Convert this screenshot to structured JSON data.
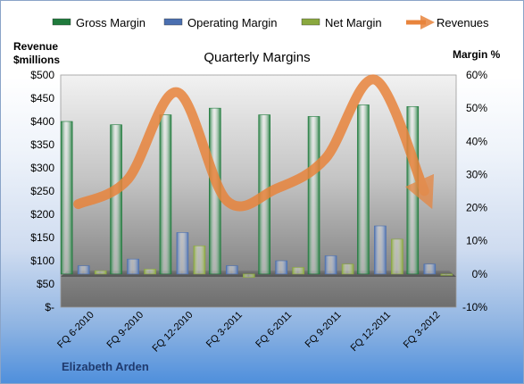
{
  "footer_text": "Elizabeth Arden",
  "chart_data": {
    "type": "bar",
    "title": "Quarterly Margins",
    "left_axis_title_line1": "Revenue",
    "left_axis_title_line2": "$millions",
    "right_axis_title": "Margin %",
    "categories": [
      "FQ 6-2010",
      "FQ 9-2010",
      "FQ 12-2010",
      "FQ 3-2011",
      "FQ 6-2011",
      "FQ 9-2011",
      "FQ 12-2011",
      "FQ 3-2012"
    ],
    "series": [
      {
        "name": "Gross Margin",
        "axis": "right",
        "color": "#1f7a3c",
        "values": [
          46,
          45,
          48,
          50,
          48,
          47.5,
          51,
          50.5
        ]
      },
      {
        "name": "Operating Margin",
        "axis": "right",
        "color": "#4a6fb0",
        "values": [
          2.5,
          4.5,
          12.5,
          2.5,
          4,
          5.5,
          14.5,
          3
        ]
      },
      {
        "name": "Net Margin",
        "axis": "right",
        "color": "#8aa83e",
        "values": [
          1,
          1.5,
          8.5,
          -1,
          2,
          3,
          10.5,
          0
        ]
      },
      {
        "name": "Revenues",
        "axis": "left",
        "color": "#e8843c",
        "values": [
          222,
          275,
          463,
          230,
          255,
          320,
          490,
          250
        ]
      }
    ],
    "left_axis": {
      "ylim": [
        0,
        500
      ],
      "ticks": [
        "$-",
        "$50",
        "$100",
        "$150",
        "$200",
        "$250",
        "$300",
        "$350",
        "$400",
        "$450",
        "$500"
      ]
    },
    "right_axis": {
      "ylim": [
        -10,
        60
      ],
      "ticks": [
        "-10%",
        "0%",
        "10%",
        "20%",
        "30%",
        "40%",
        "50%",
        "60%"
      ]
    },
    "legend_position": "top",
    "grid": false
  }
}
